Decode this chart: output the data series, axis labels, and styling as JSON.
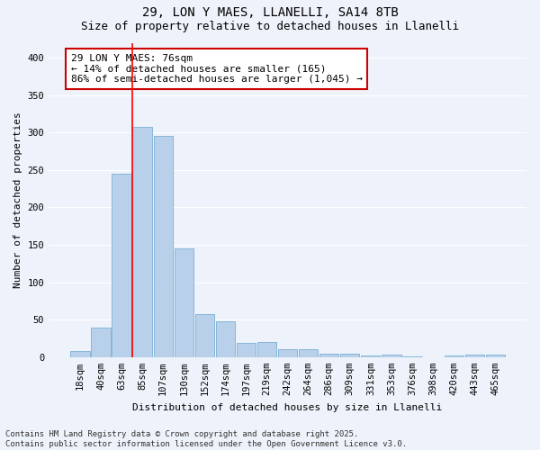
{
  "title1": "29, LON Y MAES, LLANELLI, SA14 8TB",
  "title2": "Size of property relative to detached houses in Llanelli",
  "xlabel": "Distribution of detached houses by size in Llanelli",
  "ylabel": "Number of detached properties",
  "categories": [
    "18sqm",
    "40sqm",
    "63sqm",
    "85sqm",
    "107sqm",
    "130sqm",
    "152sqm",
    "174sqm",
    "197sqm",
    "219sqm",
    "242sqm",
    "264sqm",
    "286sqm",
    "309sqm",
    "331sqm",
    "353sqm",
    "376sqm",
    "398sqm",
    "420sqm",
    "443sqm",
    "465sqm"
  ],
  "values": [
    8,
    40,
    245,
    307,
    295,
    145,
    57,
    48,
    19,
    20,
    10,
    11,
    5,
    4,
    2,
    3,
    1,
    0,
    2,
    3,
    3
  ],
  "bar_color": "#b8d0ea",
  "bar_edge_color": "#7aafd4",
  "vline_x_idx": 2.5,
  "annotation_text": "29 LON Y MAES: 76sqm\n← 14% of detached houses are smaller (165)\n86% of semi-detached houses are larger (1,045) →",
  "annotation_box_color": "#ffffff",
  "annotation_box_edge_color": "#cc0000",
  "ylim": [
    0,
    420
  ],
  "yticks": [
    0,
    50,
    100,
    150,
    200,
    250,
    300,
    350,
    400
  ],
  "footer": "Contains HM Land Registry data © Crown copyright and database right 2025.\nContains public sector information licensed under the Open Government Licence v3.0.",
  "background_color": "#eef2fa",
  "plot_background": "#eef2fa",
  "grid_color": "#ffffff",
  "title_fontsize": 10,
  "subtitle_fontsize": 9,
  "axis_label_fontsize": 8,
  "tick_fontsize": 7.5,
  "footer_fontsize": 6.5,
  "annotation_fontsize": 8
}
